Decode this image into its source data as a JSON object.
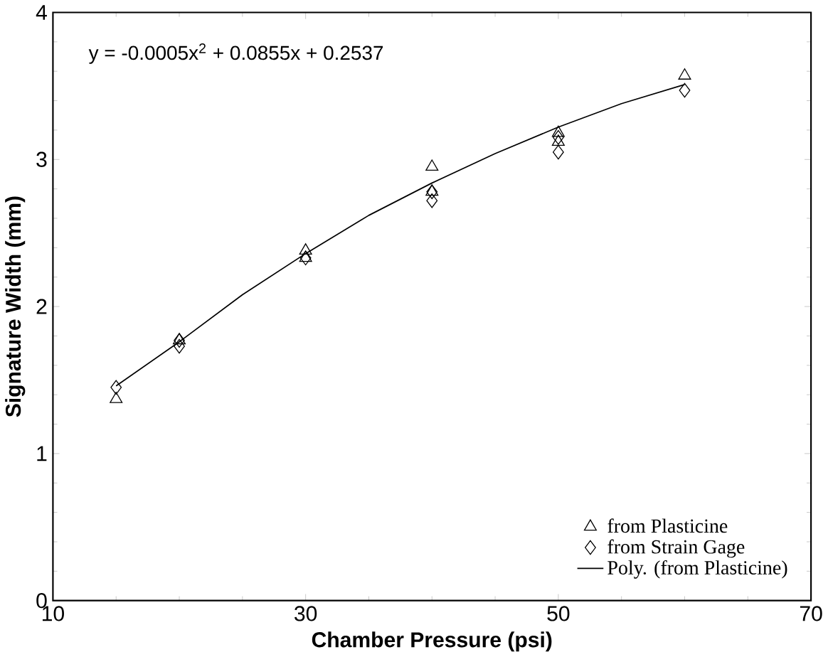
{
  "chart_data": {
    "type": "scatter",
    "xlabel": "Chamber Pressure (psi)",
    "ylabel": "Signature Width (mm)",
    "xlim": [
      10,
      70
    ],
    "ylim": [
      0,
      4
    ],
    "xticks": [
      10,
      30,
      50,
      70
    ],
    "yticks": [
      0,
      1,
      2,
      3,
      4
    ],
    "grid": false,
    "legend": "bottom right",
    "annotations": [
      "y = -0.0005x$^{2}$ + 0.0855x + 0.2537"
    ],
    "series": [
      {
        "name": "from Plasticine",
        "marker": "triangle",
        "color": "#000000",
        "x": [
          15,
          20,
          30,
          30,
          40,
          40,
          50,
          50,
          60
        ],
        "values": [
          1.37,
          1.77,
          2.38,
          2.33,
          2.95,
          2.78,
          3.18,
          3.12,
          3.57
        ]
      },
      {
        "name": "from Strain Gage",
        "marker": "diamond",
        "color": "#000000",
        "x": [
          15,
          20,
          20,
          30,
          40,
          40,
          50,
          50,
          60
        ],
        "values": [
          1.45,
          1.77,
          1.73,
          2.33,
          2.78,
          2.72,
          3.05,
          3.15,
          3.47
        ]
      },
      {
        "name": "Poly. (from Plasticine)",
        "type": "line",
        "marker": "none",
        "color": "#000000",
        "x": [
          15,
          20,
          25,
          30,
          35,
          40,
          45,
          50,
          55,
          60
        ],
        "values": [
          1.46,
          1.76,
          2.08,
          2.36,
          2.62,
          2.84,
          3.04,
          3.22,
          3.38,
          3.51
        ]
      }
    ]
  }
}
